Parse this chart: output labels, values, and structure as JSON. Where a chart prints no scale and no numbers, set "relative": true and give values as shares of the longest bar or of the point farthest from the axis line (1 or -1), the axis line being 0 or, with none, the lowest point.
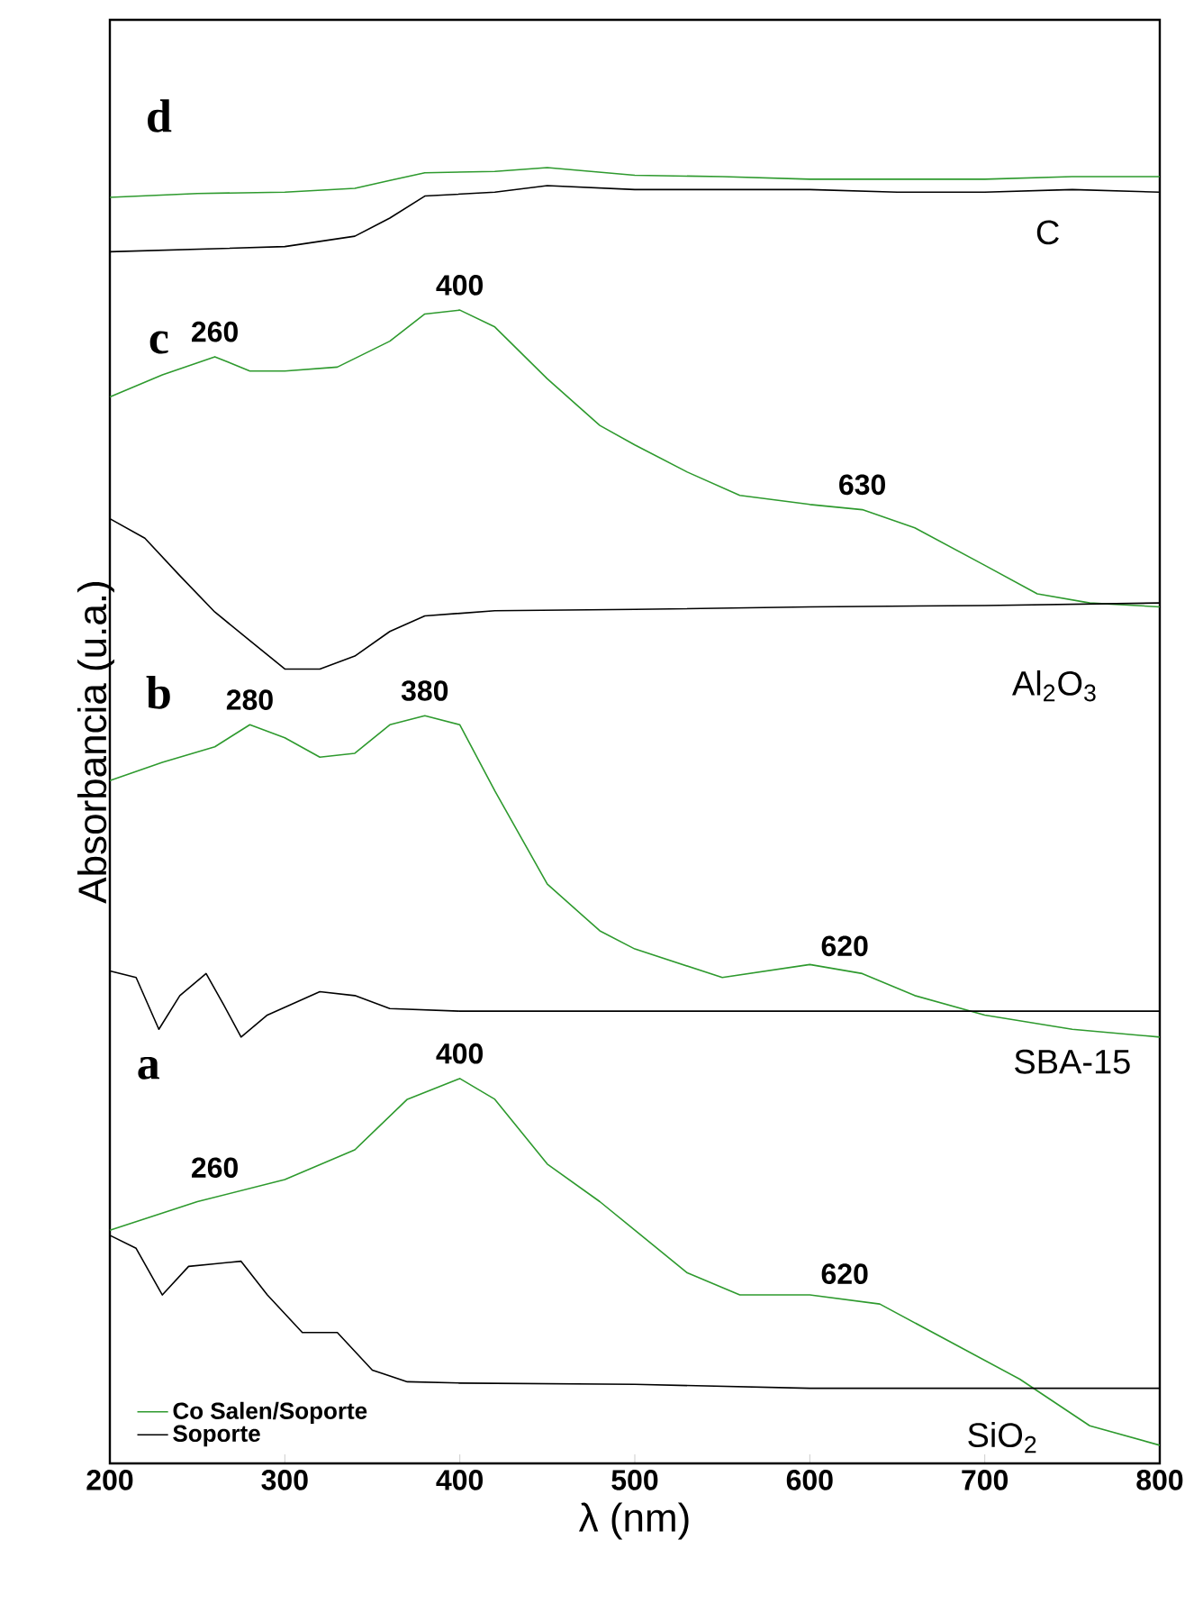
{
  "chart_data": {
    "type": "line",
    "relative": true,
    "xlabel": "λ (nm)",
    "ylabel": "Absorbancia (u.a.)",
    "xlim": [
      200,
      800
    ],
    "xticks": [
      200,
      300,
      400,
      500,
      600,
      700,
      800
    ],
    "tick_labels": "x",
    "legend": "bottom left",
    "series": [
      {
        "name": "Co Salen/Soporte",
        "color": "#2e9a2e",
        "x": [
          200,
          250,
          300,
          340,
          370,
          400,
          420,
          450,
          480,
          500,
          530,
          560,
          600,
          640,
          680,
          720,
          760,
          800
        ],
        "values": [
          0.18,
          0.202,
          0.219,
          0.242,
          0.281,
          0.297,
          0.281,
          0.231,
          0.202,
          0.18,
          0.147,
          0.13,
          0.13,
          0.123,
          0.094,
          0.065,
          0.029,
          0.014
        ]
      },
      {
        "name": "Soporte",
        "color": "#000000",
        "x": [
          200,
          215,
          230,
          245,
          260,
          275,
          290,
          310,
          330,
          350,
          370,
          400,
          500,
          600,
          700,
          800
        ],
        "values": [
          0.176,
          0.166,
          0.13,
          0.152,
          0.154,
          0.156,
          0.13,
          0.101,
          0.101,
          0.072,
          0.063,
          0.062,
          0.061,
          0.058,
          0.058,
          0.058
        ]
      },
      {
        "color": "#2e9a2e",
        "x": [
          200,
          230,
          260,
          280,
          300,
          320,
          340,
          360,
          380,
          400,
          420,
          450,
          480,
          500,
          550,
          600,
          630,
          660,
          700,
          750,
          800
        ],
        "values": [
          0.527,
          0.541,
          0.553,
          0.57,
          0.56,
          0.545,
          0.548,
          0.57,
          0.577,
          0.57,
          0.519,
          0.447,
          0.411,
          0.397,
          0.375,
          0.385,
          0.378,
          0.361,
          0.346,
          0.335,
          0.329
        ]
      },
      {
        "color": "#000000",
        "x": [
          200,
          215,
          228,
          240,
          255,
          265,
          275,
          290,
          320,
          340,
          360,
          400,
          500,
          600,
          700,
          800
        ],
        "values": [
          0.38,
          0.375,
          0.335,
          0.361,
          0.378,
          0.354,
          0.329,
          0.346,
          0.364,
          0.361,
          0.351,
          0.349,
          0.349,
          0.349,
          0.349,
          0.349
        ]
      },
      {
        "color": "#2e9a2e",
        "x": [
          200,
          230,
          260,
          280,
          300,
          330,
          360,
          380,
          400,
          420,
          450,
          480,
          500,
          530,
          560,
          600,
          630,
          660,
          700,
          730,
          760,
          800
        ],
        "values": [
          0.823,
          0.84,
          0.854,
          0.843,
          0.843,
          0.846,
          0.866,
          0.887,
          0.89,
          0.877,
          0.837,
          0.801,
          0.786,
          0.765,
          0.747,
          0.74,
          0.736,
          0.722,
          0.693,
          0.671,
          0.664,
          0.661
        ]
      },
      {
        "color": "#000000",
        "x": [
          200,
          220,
          240,
          260,
          280,
          300,
          320,
          340,
          360,
          380,
          420,
          500,
          600,
          700,
          800
        ],
        "values": [
          0.729,
          0.714,
          0.685,
          0.657,
          0.635,
          0.613,
          0.613,
          0.623,
          0.642,
          0.654,
          0.658,
          0.659,
          0.661,
          0.662,
          0.664
        ]
      },
      {
        "color": "#2e9a2e",
        "x": [
          200,
          250,
          300,
          340,
          360,
          380,
          420,
          450,
          500,
          550,
          600,
          650,
          700,
          750,
          800
        ],
        "values": [
          0.977,
          0.98,
          0.981,
          0.984,
          0.99,
          0.996,
          0.997,
          1.0,
          0.994,
          0.993,
          0.991,
          0.991,
          0.991,
          0.993,
          0.993
        ]
      },
      {
        "color": "#000000",
        "x": [
          200,
          250,
          300,
          340,
          360,
          380,
          420,
          450,
          500,
          550,
          600,
          650,
          700,
          750,
          800
        ],
        "values": [
          0.935,
          0.937,
          0.939,
          0.947,
          0.961,
          0.978,
          0.981,
          0.986,
          0.983,
          0.983,
          0.983,
          0.981,
          0.981,
          0.983,
          0.981
        ]
      }
    ],
    "annotations": [
      "d",
      "C",
      "c",
      {
        "text": "260",
        "x": 260,
        "y": 0.854
      },
      {
        "text": "400",
        "x": 400,
        "y": 0.89
      },
      {
        "text": "630",
        "x": 630,
        "y": 0.736
      },
      "Al$_{2}$O$_{3}$",
      "b",
      {
        "text": "280",
        "x": 280,
        "y": 0.57
      },
      {
        "text": "380",
        "x": 380,
        "y": 0.577
      },
      {
        "text": "620",
        "x": 620,
        "y": 0.38
      },
      "SBA-15",
      "a",
      {
        "text": "260",
        "x": 260,
        "y": 0.209
      },
      {
        "text": "400",
        "x": 400,
        "y": 0.297
      },
      {
        "text": "620",
        "x": 620,
        "y": 0.127
      },
      "SiO$_{2}$"
    ]
  }
}
